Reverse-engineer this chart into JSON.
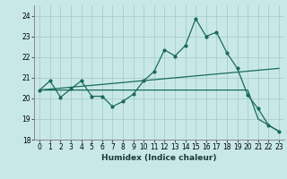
{
  "xlabel": "Humidex (Indice chaleur)",
  "xlim": [
    -0.5,
    23.5
  ],
  "ylim": [
    18,
    24.5
  ],
  "yticks": [
    18,
    19,
    20,
    21,
    22,
    23,
    24
  ],
  "xticks": [
    0,
    1,
    2,
    3,
    4,
    5,
    6,
    7,
    8,
    9,
    10,
    11,
    12,
    13,
    14,
    15,
    16,
    17,
    18,
    19,
    20,
    21,
    22,
    23
  ],
  "bg_color": "#c8e8e8",
  "grid_color": "#a8cccc",
  "line_color": "#1a6a5a",
  "line1_x": [
    0,
    1,
    2,
    3,
    4,
    5,
    6,
    7,
    8,
    9,
    10,
    11,
    12,
    13,
    14,
    15,
    16,
    17,
    18,
    19,
    20,
    21,
    22,
    23
  ],
  "line1_y": [
    20.4,
    20.85,
    20.05,
    20.45,
    20.85,
    20.1,
    20.1,
    19.6,
    19.85,
    20.2,
    20.85,
    21.3,
    22.35,
    22.05,
    22.55,
    23.85,
    23.0,
    23.2,
    22.2,
    21.45,
    20.15,
    19.5,
    18.7,
    18.4
  ],
  "line2_x": [
    0,
    23
  ],
  "line2_y": [
    20.4,
    21.45
  ],
  "line3_x": [
    0,
    20,
    21,
    22,
    23
  ],
  "line3_y": [
    20.4,
    20.4,
    19.0,
    18.7,
    18.4
  ]
}
